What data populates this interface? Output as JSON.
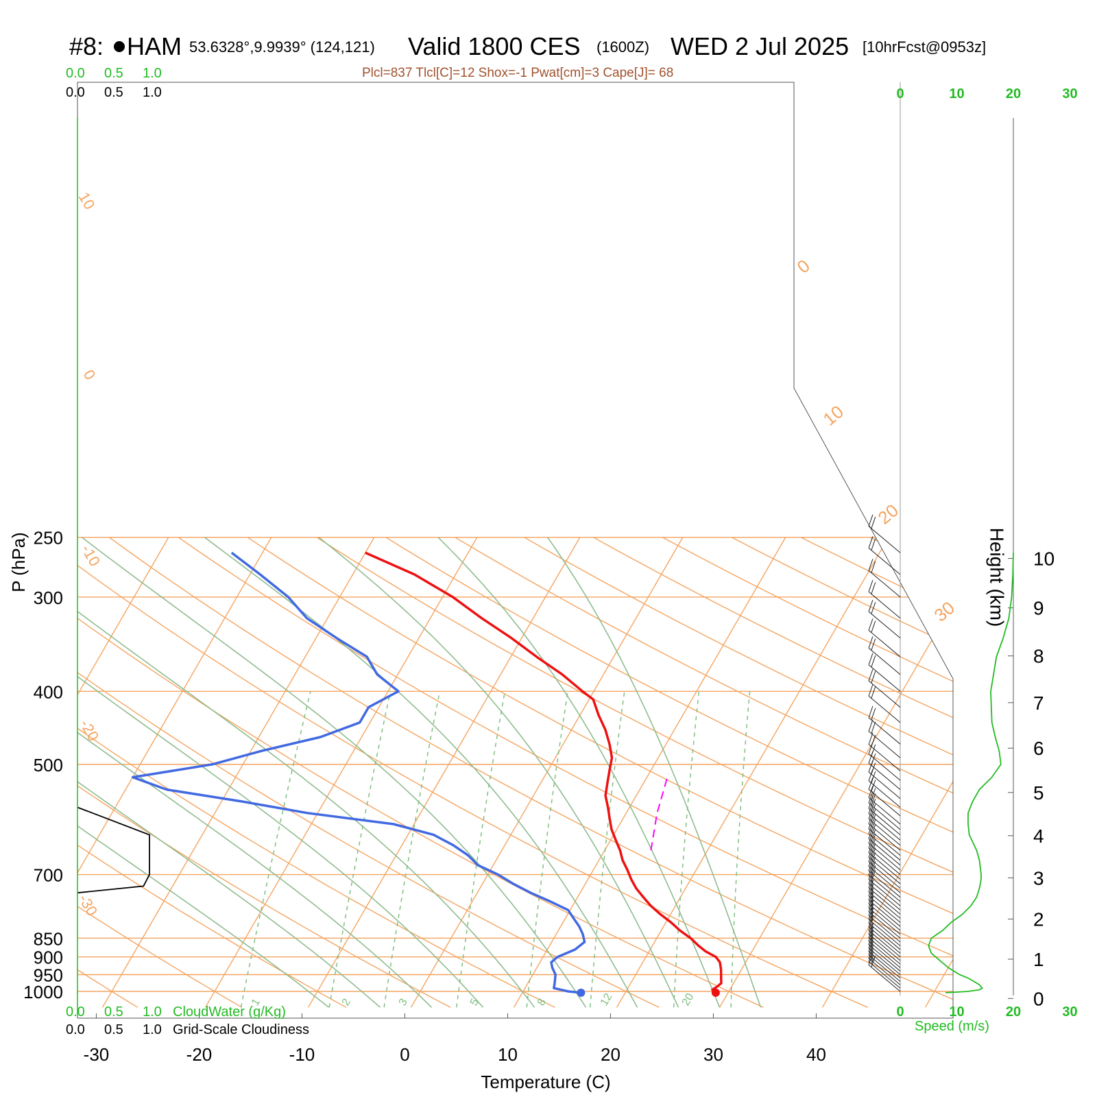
{
  "header": {
    "station_prefix": "#8: ",
    "station_code": "HAM",
    "coords": "53.6328°,9.9939° (124,121)",
    "valid": "Valid 1800 CES",
    "zulu": "(1600Z)",
    "date": "WED 2 Jul 2025",
    "forecast": "[10hrFcst@0953z]",
    "info": "Plcl=837 Tlcl[C]=12 Shox=-1 Pwat[cm]=3 Cape[J]= 68"
  },
  "legends": {
    "cloudwater_label": "CloudWater (g/Kg)",
    "cloudiness_label": "Grid-Scale Cloudiness",
    "scale_ticks": [
      "0.0",
      "0.5",
      "1.0"
    ],
    "speed_label": "Speed (m/s)",
    "speed_ticks": [
      "0",
      "10",
      "20",
      "30"
    ]
  },
  "axes": {
    "x_label": "Temperature (C)",
    "y_label": "P (hPa)",
    "height_label": "Height (km)",
    "x_ticks": [
      -30,
      -20,
      -10,
      0,
      10,
      20,
      30,
      40
    ],
    "p_ticks": [
      250,
      300,
      400,
      500,
      700,
      850,
      900,
      950,
      1000
    ],
    "height_ticks": [
      0,
      1,
      2,
      3,
      4,
      5,
      6,
      7,
      8,
      9,
      10
    ],
    "isotherm_labels_left": [
      "10",
      "0",
      "-10",
      "-20",
      "-30"
    ],
    "isotherm_labels_right": [
      "0",
      "10",
      "20",
      "30"
    ],
    "mixing_ratio_labels": [
      "1",
      "2",
      "3",
      "5",
      "8",
      "12",
      "20"
    ]
  },
  "colors": {
    "isobar": "#f4a460",
    "isotherm": "#f4a460",
    "dry_adiabat": "#f4a460",
    "moist_adiabat": "#8fbc8f",
    "mixing_ratio": "#7fbf7f",
    "temperature": "#ee1111",
    "dewpoint": "#4169e1",
    "parcel": "#ff00ff",
    "wind_speed": "#22bb22",
    "legend_green": "#22bb22",
    "info_text": "#a0522d"
  },
  "chart_data": {
    "type": "line",
    "skew_t": true,
    "series": [
      {
        "key": "temperature",
        "points": [
          [
            28.8,
            1004
          ],
          [
            28.3,
            995
          ],
          [
            28.6,
            985
          ],
          [
            28.8,
            975
          ],
          [
            28.6,
            965
          ],
          [
            28.3,
            950
          ],
          [
            28,
            935
          ],
          [
            27.5,
            915
          ],
          [
            26.8,
            900
          ],
          [
            25.5,
            885
          ],
          [
            24.5,
            870
          ],
          [
            23.3,
            850
          ],
          [
            21.8,
            830
          ],
          [
            20.5,
            810
          ],
          [
            19,
            790
          ],
          [
            17.6,
            770
          ],
          [
            16.4,
            750
          ],
          [
            15.2,
            730
          ],
          [
            14.2,
            710
          ],
          [
            13.3,
            690
          ],
          [
            12.3,
            670
          ],
          [
            11.5,
            650
          ],
          [
            10.5,
            630
          ],
          [
            9.5,
            610
          ],
          [
            8.7,
            590
          ],
          [
            7.9,
            570
          ],
          [
            7,
            550
          ],
          [
            6.5,
            530
          ],
          [
            6,
            510
          ],
          [
            5.5,
            490
          ],
          [
            4.5,
            470
          ],
          [
            3.3,
            450
          ],
          [
            1.8,
            430
          ],
          [
            0.4,
            410
          ],
          [
            -1.1,
            400
          ],
          [
            -4,
            380
          ],
          [
            -7.5,
            360
          ],
          [
            -11,
            340
          ],
          [
            -15,
            320
          ],
          [
            -19,
            300
          ],
          [
            -24,
            280
          ],
          [
            -30,
            262
          ]
        ]
      },
      {
        "key": "dewpoint",
        "points": [
          [
            15.7,
            1004
          ],
          [
            14.4,
            1000
          ],
          [
            12.8,
            990
          ],
          [
            12.6,
            975
          ],
          [
            12.2,
            950
          ],
          [
            11.5,
            930
          ],
          [
            11.1,
            915
          ],
          [
            11.4,
            900
          ],
          [
            12.7,
            880
          ],
          [
            13.2,
            860
          ],
          [
            12.6,
            840
          ],
          [
            11.8,
            820
          ],
          [
            10.8,
            800
          ],
          [
            9.8,
            780
          ],
          [
            7.6,
            760
          ],
          [
            5.2,
            740
          ],
          [
            3,
            720
          ],
          [
            1,
            700
          ],
          [
            -1.5,
            680
          ],
          [
            -3,
            660
          ],
          [
            -5,
            640
          ],
          [
            -7.5,
            620
          ],
          [
            -12,
            600
          ],
          [
            -21,
            580
          ],
          [
            -28,
            560
          ],
          [
            -36,
            540
          ],
          [
            -40,
            520
          ],
          [
            -33,
            500
          ],
          [
            -29,
            480
          ],
          [
            -24,
            460
          ],
          [
            -21,
            440
          ],
          [
            -21,
            420
          ],
          [
            -19,
            400
          ],
          [
            -22,
            380
          ],
          [
            -24,
            360
          ],
          [
            -28,
            340
          ],
          [
            -32,
            320
          ],
          [
            -35,
            300
          ],
          [
            -39,
            280
          ],
          [
            -43,
            262
          ]
        ]
      },
      {
        "key": "parcel",
        "dashed": true,
        "points": [
          [
            14.5,
            650
          ],
          [
            13,
            580
          ],
          [
            11.9,
            515
          ]
        ]
      }
    ],
    "cloudiness_profile": [
      [
        0.0,
        570
      ],
      [
        0.6,
        620
      ],
      [
        0.6,
        700
      ],
      [
        0.55,
        725
      ],
      [
        0.0,
        740
      ]
    ],
    "wind_speed_profile": [
      [
        8,
        1004
      ],
      [
        12,
        1000
      ],
      [
        14,
        995
      ],
      [
        14.5,
        990
      ],
      [
        14,
        980
      ],
      [
        13,
        970
      ],
      [
        12,
        960
      ],
      [
        10.5,
        950
      ],
      [
        8.5,
        930
      ],
      [
        7,
        910
      ],
      [
        5.5,
        890
      ],
      [
        5,
        870
      ],
      [
        5.5,
        850
      ],
      [
        7.5,
        830
      ],
      [
        9,
        810
      ],
      [
        11,
        790
      ],
      [
        12.5,
        770
      ],
      [
        13.5,
        750
      ],
      [
        14,
        730
      ],
      [
        14.3,
        710
      ],
      [
        14.3,
        700
      ],
      [
        14.2,
        690
      ],
      [
        14,
        670
      ],
      [
        13.5,
        650
      ],
      [
        12.2,
        620
      ],
      [
        12,
        600
      ],
      [
        12,
        580
      ],
      [
        12.8,
        560
      ],
      [
        14,
        540
      ],
      [
        16.2,
        520
      ],
      [
        17.8,
        500
      ],
      [
        17.5,
        480
      ],
      [
        16.8,
        460
      ],
      [
        16.2,
        440
      ],
      [
        16,
        400
      ],
      [
        16.5,
        380
      ],
      [
        17,
        360
      ],
      [
        18.2,
        340
      ],
      [
        19.2,
        320
      ],
      [
        19.7,
        300
      ],
      [
        19.9,
        280
      ],
      [
        20,
        262
      ]
    ],
    "wind_barb_levels": [
      [
        1000,
        18
      ],
      [
        990,
        17
      ],
      [
        980,
        17
      ],
      [
        970,
        16
      ],
      [
        960,
        16
      ],
      [
        950,
        15
      ],
      [
        940,
        15
      ],
      [
        930,
        14
      ],
      [
        920,
        14
      ],
      [
        910,
        13
      ],
      [
        900,
        13
      ],
      [
        890,
        13
      ],
      [
        880,
        12
      ],
      [
        870,
        13
      ],
      [
        860,
        13
      ],
      [
        850,
        14
      ],
      [
        840,
        14
      ],
      [
        830,
        15
      ],
      [
        820,
        15
      ],
      [
        810,
        16
      ],
      [
        800,
        16
      ],
      [
        790,
        17
      ],
      [
        780,
        17
      ],
      [
        770,
        18
      ],
      [
        760,
        18
      ],
      [
        750,
        18
      ],
      [
        740,
        19
      ],
      [
        730,
        19
      ],
      [
        720,
        19
      ],
      [
        710,
        19
      ],
      [
        700,
        19
      ],
      [
        690,
        19
      ],
      [
        680,
        19
      ],
      [
        670,
        19
      ],
      [
        660,
        19
      ],
      [
        650,
        19
      ],
      [
        640,
        19
      ],
      [
        630,
        19
      ],
      [
        620,
        19
      ],
      [
        610,
        19
      ],
      [
        600,
        20
      ],
      [
        585,
        20
      ],
      [
        570,
        20
      ],
      [
        555,
        21
      ],
      [
        540,
        21
      ],
      [
        525,
        22
      ],
      [
        510,
        22
      ],
      [
        490,
        22
      ],
      [
        470,
        22
      ],
      [
        440,
        21
      ],
      [
        420,
        21
      ],
      [
        400,
        21
      ],
      [
        380,
        21
      ],
      [
        360,
        22
      ],
      [
        340,
        22
      ],
      [
        320,
        22
      ],
      [
        300,
        22
      ],
      [
        280,
        22
      ],
      [
        262,
        22
      ]
    ],
    "xlim": [
      -33.5,
      46
    ],
    "ylim_hpa": [
      1050,
      250
    ],
    "height_range_km": [
      0,
      10
    ],
    "speed_range_ms": [
      0,
      30
    ]
  }
}
